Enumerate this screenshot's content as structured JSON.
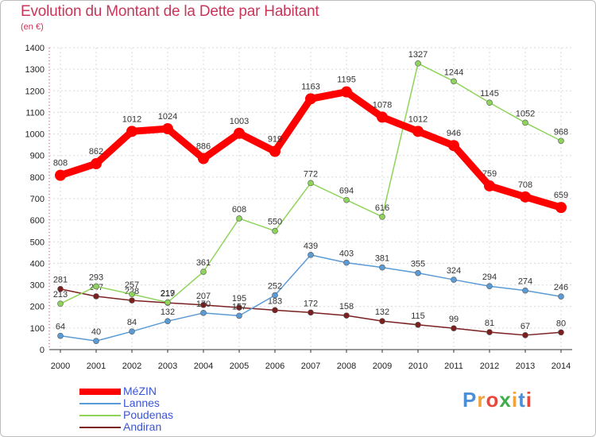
{
  "chart_data": {
    "type": "line",
    "title": "Evolution du Montant de la Dette par Habitant",
    "subtitle": "(en €)",
    "x": [
      "2000",
      "2001",
      "2002",
      "2003",
      "2004",
      "2005",
      "2006",
      "2007",
      "2008",
      "2009",
      "2010",
      "2011",
      "2012",
      "2013",
      "2014"
    ],
    "ylim": [
      0,
      1400
    ],
    "yticks": [
      0,
      100,
      200,
      300,
      400,
      500,
      600,
      700,
      800,
      900,
      1000,
      1100,
      1200,
      1300,
      1400
    ],
    "grid": true,
    "legend_position": "bottom-left",
    "series": [
      {
        "name": "MéZIN",
        "color": "#ff0000",
        "values": [
          808,
          862,
          1012,
          1024,
          886,
          1003,
          919,
          1163,
          1195,
          1078,
          1012,
          946,
          759,
          708,
          659
        ]
      },
      {
        "name": "Lannes",
        "color": "#5b9bd5",
        "values": [
          64,
          40,
          84,
          132,
          170,
          157,
          252,
          439,
          403,
          381,
          355,
          324,
          294,
          274,
          246
        ]
      },
      {
        "name": "Poudenas",
        "color": "#8fd45a",
        "values": [
          213,
          293,
          257,
          219,
          361,
          608,
          550,
          772,
          694,
          616,
          1327,
          1244,
          1145,
          1052,
          968
        ]
      },
      {
        "name": "Andiran",
        "color": "#7b1f1f",
        "values": [
          281,
          247,
          228,
          217,
          207,
          195,
          183,
          172,
          158,
          132,
          115,
          99,
          81,
          67,
          80
        ]
      }
    ]
  },
  "legend_colors": {
    "MéZIN": "#3a54d8",
    "Lannes": "#3a54d8",
    "Poudenas": "#3a54d8",
    "Andiran": "#3a54d8"
  },
  "logo": {
    "text": "Proxiti"
  }
}
